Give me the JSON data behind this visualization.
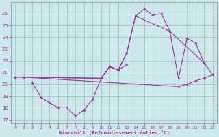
{
  "background_color": "#cce8ed",
  "grid_color": "#aacccc",
  "line_color": "#993399",
  "xlabel": "Windchill (Refroidissement éolien,°C)",
  "xlim": [
    -0.5,
    23.5
  ],
  "ylim": [
    16.7,
    27.0
  ],
  "yticks": [
    17,
    18,
    19,
    20,
    21,
    22,
    23,
    24,
    25,
    26
  ],
  "xticks": [
    0,
    1,
    2,
    3,
    4,
    5,
    6,
    7,
    8,
    9,
    10,
    11,
    12,
    13,
    14,
    15,
    16,
    17,
    18,
    19,
    20,
    21,
    22,
    23
  ],
  "line1_x": [
    0,
    1,
    10,
    11,
    12,
    13,
    14,
    15,
    16,
    17,
    18,
    22
  ],
  "line1_y": [
    20.6,
    20.6,
    20.5,
    21.5,
    21.2,
    22.7,
    25.8,
    26.4,
    25.9,
    26.0,
    24.5,
    21.8
  ],
  "line2_x": [
    0,
    1,
    10,
    11,
    12,
    13,
    14,
    18,
    19,
    20,
    21,
    22,
    23
  ],
  "line2_y": [
    20.6,
    20.6,
    20.5,
    21.5,
    21.2,
    22.7,
    25.8,
    24.5,
    20.5,
    23.9,
    23.5,
    21.8,
    20.8
  ],
  "line3_x": [
    2,
    3,
    4,
    5,
    6,
    7,
    8,
    9,
    10,
    11,
    12,
    13
  ],
  "line3_y": [
    20.1,
    18.9,
    18.4,
    18.0,
    18.0,
    17.3,
    17.8,
    18.7,
    20.5,
    21.5,
    21.2,
    21.7
  ],
  "line4_x": [
    0,
    1,
    19,
    20,
    21,
    22,
    23
  ],
  "line4_y": [
    20.6,
    20.6,
    19.8,
    20.0,
    20.3,
    20.5,
    20.8
  ]
}
